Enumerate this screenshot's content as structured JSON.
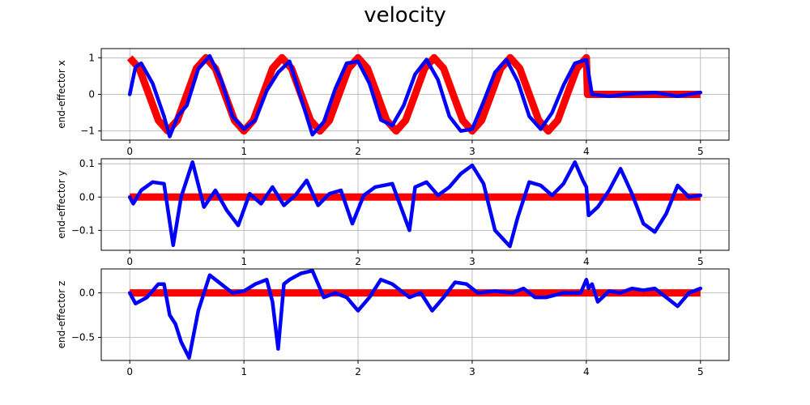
{
  "figure": {
    "title": "velocity"
  },
  "chart_data": [
    {
      "type": "line",
      "ylabel": "end-effector x",
      "xlim": [
        -0.25,
        5.25
      ],
      "ylim": [
        -1.25,
        1.25
      ],
      "xticks": [
        0,
        1,
        2,
        3,
        4,
        5
      ],
      "yticks": [
        1,
        0,
        -1
      ],
      "grid": true,
      "series": [
        {
          "color": "#ff0000",
          "x": [
            0,
            0.083,
            0.167,
            0.25,
            0.333,
            0.417,
            0.5,
            0.583,
            0.667,
            0.75,
            0.833,
            0.917,
            1.0,
            1.083,
            1.167,
            1.25,
            1.333,
            1.417,
            1.5,
            1.583,
            1.667,
            1.75,
            1.833,
            1.917,
            2.0,
            2.083,
            2.167,
            2.25,
            2.333,
            2.417,
            2.5,
            2.583,
            2.667,
            2.75,
            2.833,
            2.917,
            3.0,
            3.083,
            3.167,
            3.25,
            3.333,
            3.417,
            3.5,
            3.583,
            3.667,
            3.75,
            3.833,
            3.917,
            4.0,
            4.01,
            4.5,
            5.0
          ],
          "y": [
            1,
            0.707,
            0,
            -0.707,
            -1,
            -0.707,
            0,
            0.707,
            1,
            0.707,
            0,
            -0.707,
            -1,
            -0.707,
            0,
            0.707,
            1,
            0.707,
            0,
            -0.707,
            -1,
            -0.707,
            0,
            0.707,
            1,
            0.707,
            0,
            -0.707,
            -1,
            -0.707,
            0,
            0.707,
            1,
            0.707,
            0,
            -0.707,
            -1,
            -0.707,
            0,
            0.707,
            1,
            0.707,
            0,
            -0.707,
            -1,
            -0.707,
            0,
            0.707,
            1,
            0,
            0,
            0
          ]
        },
        {
          "color": "#0000ff",
          "x": [
            0,
            0.05,
            0.1,
            0.2,
            0.3,
            0.35,
            0.42,
            0.5,
            0.6,
            0.7,
            0.8,
            0.9,
            1.0,
            1.1,
            1.2,
            1.3,
            1.4,
            1.5,
            1.6,
            1.7,
            1.8,
            1.9,
            2.0,
            2.1,
            2.2,
            2.3,
            2.4,
            2.5,
            2.6,
            2.7,
            2.8,
            2.9,
            3.0,
            3.1,
            3.2,
            3.3,
            3.4,
            3.5,
            3.6,
            3.7,
            3.8,
            3.9,
            4.0,
            4.05,
            4.2,
            4.4,
            4.6,
            4.8,
            5.0
          ],
          "y": [
            0,
            0.75,
            0.85,
            0.3,
            -0.6,
            -1.15,
            -0.6,
            -0.3,
            0.7,
            1.05,
            0.4,
            -0.6,
            -0.95,
            -0.7,
            0.1,
            0.6,
            0.9,
            -0.1,
            -1.1,
            -0.75,
            0.15,
            0.85,
            0.9,
            0.3,
            -0.7,
            -0.85,
            -0.3,
            0.55,
            0.95,
            0.4,
            -0.6,
            -1.0,
            -0.95,
            -0.2,
            0.6,
            0.95,
            0.35,
            -0.6,
            -0.95,
            -0.5,
            0.25,
            0.85,
            0.95,
            0.0,
            -0.05,
            0.02,
            0.05,
            -0.05,
            0.05
          ]
        }
      ]
    },
    {
      "type": "line",
      "ylabel": "end-effector y",
      "xlim": [
        -0.25,
        5.25
      ],
      "ylim": [
        -0.16,
        0.115
      ],
      "xticks": [
        0,
        1,
        2,
        3,
        4,
        5
      ],
      "yticks": [
        0.1,
        0.0,
        -0.1
      ],
      "ytick_labels": [
        "0.1",
        "0.0",
        "−0.1"
      ],
      "grid": true,
      "series": [
        {
          "color": "#ff0000",
          "x": [
            0,
            5
          ],
          "y": [
            0,
            0
          ]
        },
        {
          "color": "#0000ff",
          "x": [
            0,
            0.03,
            0.1,
            0.2,
            0.3,
            0.38,
            0.45,
            0.55,
            0.65,
            0.75,
            0.85,
            0.95,
            1.05,
            1.15,
            1.25,
            1.35,
            1.45,
            1.55,
            1.65,
            1.75,
            1.85,
            1.95,
            2.05,
            2.15,
            2.3,
            2.45,
            2.5,
            2.6,
            2.7,
            2.8,
            2.9,
            3.0,
            3.1,
            3.2,
            3.33,
            3.4,
            3.5,
            3.6,
            3.7,
            3.8,
            3.9,
            3.97,
            4.0,
            4.02,
            4.1,
            4.2,
            4.3,
            4.4,
            4.5,
            4.6,
            4.7,
            4.8,
            4.9,
            5.0
          ],
          "y": [
            0,
            -0.02,
            0.02,
            0.045,
            0.04,
            -0.145,
            0.0,
            0.105,
            -0.03,
            0.02,
            -0.04,
            -0.085,
            0.01,
            -0.02,
            0.03,
            -0.025,
            0.005,
            0.05,
            -0.025,
            0.01,
            0.02,
            -0.08,
            0.005,
            0.03,
            0.04,
            -0.1,
            0.03,
            0.045,
            0.005,
            0.03,
            0.07,
            0.095,
            0.04,
            -0.1,
            -0.148,
            -0.06,
            0.045,
            0.035,
            0.005,
            0.04,
            0.105,
            0.05,
            0.03,
            -0.055,
            -0.03,
            0.02,
            0.085,
            0.01,
            -0.08,
            -0.105,
            -0.05,
            0.035,
            0.0,
            0.005
          ]
        }
      ]
    },
    {
      "type": "line",
      "ylabel": "end-effector z",
      "xlim": [
        -0.25,
        5.25
      ],
      "ylim": [
        -0.76,
        0.27
      ],
      "xticks": [
        0,
        1,
        2,
        3,
        4,
        5
      ],
      "yticks": [
        0.0,
        -0.5
      ],
      "ytick_labels": [
        "0.0",
        "−0.5"
      ],
      "grid": true,
      "series": [
        {
          "color": "#ff0000",
          "x": [
            0,
            5
          ],
          "y": [
            0,
            0
          ]
        },
        {
          "color": "#0000ff",
          "x": [
            0,
            0.05,
            0.15,
            0.25,
            0.3,
            0.35,
            0.4,
            0.45,
            0.52,
            0.6,
            0.7,
            0.8,
            0.9,
            1.0,
            1.1,
            1.2,
            1.25,
            1.3,
            1.35,
            1.4,
            1.5,
            1.6,
            1.7,
            1.8,
            1.9,
            2.0,
            2.1,
            2.2,
            2.3,
            2.45,
            2.55,
            2.65,
            2.75,
            2.85,
            2.95,
            3.05,
            3.2,
            3.35,
            3.45,
            3.55,
            3.65,
            3.8,
            3.95,
            4.0,
            4.02,
            4.05,
            4.1,
            4.2,
            4.3,
            4.4,
            4.5,
            4.6,
            4.7,
            4.8,
            4.9,
            5.0
          ],
          "y": [
            0,
            -0.12,
            -0.05,
            0.1,
            0.1,
            -0.25,
            -0.35,
            -0.55,
            -0.73,
            -0.2,
            0.2,
            0.1,
            0.0,
            0.02,
            0.1,
            0.15,
            -0.1,
            -0.63,
            0.1,
            0.15,
            0.22,
            0.25,
            -0.05,
            0.0,
            -0.05,
            -0.2,
            -0.05,
            0.15,
            0.1,
            -0.05,
            0.0,
            -0.2,
            -0.05,
            0.12,
            0.1,
            0.0,
            0.02,
            0.0,
            0.05,
            -0.05,
            -0.05,
            0.0,
            0.0,
            0.15,
            0.05,
            0.1,
            -0.1,
            0.02,
            0.0,
            0.05,
            0.03,
            0.05,
            -0.05,
            -0.15,
            0.0,
            0.05
          ]
        }
      ]
    }
  ]
}
